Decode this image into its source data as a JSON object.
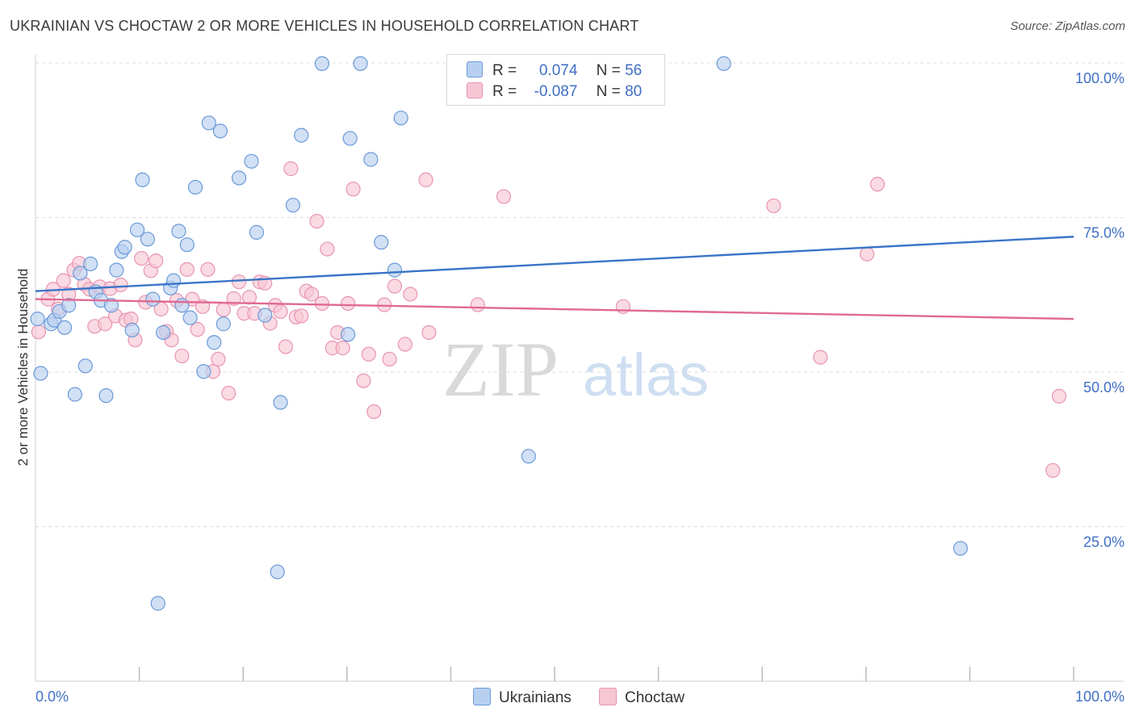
{
  "title": "UKRAINIAN VS CHOCTAW 2 OR MORE VEHICLES IN HOUSEHOLD CORRELATION CHART",
  "source": "Source: ZipAtlas.com",
  "watermark": {
    "zip": "ZIP",
    "atlas": "atlas"
  },
  "colors": {
    "ukrainians_fill": "#b8d0f0",
    "ukrainians_stroke": "#6b9ad8",
    "ukrainians_line": "#3a74c8",
    "choctaw_fill": "#f7c6d4",
    "choctaw_stroke": "#e895b0",
    "choctaw_line": "#e06a92",
    "tick_label": "#3f6fc6",
    "grid": "#dddddd"
  },
  "legend": {
    "rows": [
      {
        "r_label": "R =",
        "r_value": "0.074",
        "n_label": "N =",
        "n_value": "56"
      },
      {
        "r_label": "R =",
        "r_value": "-0.087",
        "n_label": "N =",
        "n_value": "80"
      }
    ]
  },
  "chart_data": {
    "type": "scatter",
    "title": "UKRAINIAN VS CHOCTAW 2 OR MORE VEHICLES IN HOUSEHOLD CORRELATION CHART",
    "xlabel": "",
    "ylabel": "2 or more Vehicles in Household",
    "xlim": [
      0,
      100
    ],
    "ylim": [
      0,
      100
    ],
    "x_tick_labels": [
      "0.0%",
      "100.0%"
    ],
    "y_ticks": [
      25,
      50,
      75,
      100
    ],
    "y_tick_labels": [
      "25.0%",
      "50.0%",
      "75.0%",
      "100.0%"
    ],
    "grid": true,
    "legend_position": "top-center",
    "series": [
      {
        "name": "Ukrainians",
        "r": 0.074,
        "n": 56,
        "trend": {
          "x": [
            0,
            100
          ],
          "y": [
            63.1,
            71.9
          ]
        },
        "points": [
          [
            0.5,
            49.8
          ],
          [
            1.5,
            57.8
          ],
          [
            1.8,
            58.4
          ],
          [
            2.3,
            59.8
          ],
          [
            2.8,
            57.2
          ],
          [
            3.2,
            60.8
          ],
          [
            3.8,
            46.4
          ],
          [
            4.3,
            66.0
          ],
          [
            4.8,
            51.0
          ],
          [
            5.3,
            67.5
          ],
          [
            5.8,
            63.0
          ],
          [
            6.3,
            61.6
          ],
          [
            6.8,
            46.2
          ],
          [
            7.3,
            60.8
          ],
          [
            7.8,
            66.5
          ],
          [
            8.3,
            69.5
          ],
          [
            8.6,
            70.2
          ],
          [
            9.3,
            56.8
          ],
          [
            9.8,
            73.0
          ],
          [
            10.3,
            81.1
          ],
          [
            10.8,
            71.5
          ],
          [
            11.3,
            61.8
          ],
          [
            11.8,
            12.6
          ],
          [
            12.3,
            56.4
          ],
          [
            13.0,
            63.6
          ],
          [
            13.3,
            64.8
          ],
          [
            13.8,
            72.8
          ],
          [
            14.1,
            60.8
          ],
          [
            14.6,
            70.6
          ],
          [
            14.9,
            58.8
          ],
          [
            15.4,
            79.9
          ],
          [
            16.2,
            50.1
          ],
          [
            16.7,
            90.3
          ],
          [
            17.2,
            54.8
          ],
          [
            17.8,
            89.0
          ],
          [
            18.1,
            57.8
          ],
          [
            19.6,
            81.4
          ],
          [
            20.8,
            84.1
          ],
          [
            21.3,
            72.6
          ],
          [
            22.1,
            59.2
          ],
          [
            23.3,
            17.7
          ],
          [
            23.6,
            45.1
          ],
          [
            24.8,
            77.0
          ],
          [
            25.6,
            88.3
          ],
          [
            27.6,
            99.9
          ],
          [
            30.1,
            56.1
          ],
          [
            30.3,
            87.8
          ],
          [
            31.3,
            99.9
          ],
          [
            32.3,
            84.4
          ],
          [
            33.3,
            71.0
          ],
          [
            34.6,
            66.5
          ],
          [
            35.2,
            91.1
          ],
          [
            47.5,
            36.4
          ],
          [
            66.3,
            99.9
          ],
          [
            89.1,
            21.5
          ],
          [
            0.2,
            58.6
          ]
        ]
      },
      {
        "name": "Choctaw",
        "r": -0.087,
        "n": 80,
        "trend": {
          "x": [
            0,
            100
          ],
          "y": [
            61.8,
            58.6
          ]
        },
        "points": [
          [
            0.3,
            56.5
          ],
          [
            1.2,
            61.8
          ],
          [
            1.7,
            63.4
          ],
          [
            2.2,
            60.2
          ],
          [
            2.7,
            64.8
          ],
          [
            3.2,
            62.6
          ],
          [
            3.7,
            66.5
          ],
          [
            4.2,
            67.6
          ],
          [
            4.7,
            64.2
          ],
          [
            5.2,
            63.4
          ],
          [
            5.7,
            57.4
          ],
          [
            6.2,
            63.8
          ],
          [
            6.7,
            57.8
          ],
          [
            7.2,
            63.5
          ],
          [
            7.7,
            59.1
          ],
          [
            8.2,
            64.1
          ],
          [
            8.7,
            58.4
          ],
          [
            9.2,
            58.6
          ],
          [
            9.6,
            55.2
          ],
          [
            10.2,
            68.4
          ],
          [
            10.6,
            61.3
          ],
          [
            11.1,
            66.4
          ],
          [
            11.6,
            68.0
          ],
          [
            12.1,
            60.2
          ],
          [
            12.6,
            56.6
          ],
          [
            13.1,
            55.2
          ],
          [
            13.6,
            61.6
          ],
          [
            14.1,
            52.6
          ],
          [
            14.6,
            66.6
          ],
          [
            15.1,
            61.8
          ],
          [
            15.6,
            56.9
          ],
          [
            16.1,
            60.6
          ],
          [
            16.6,
            66.6
          ],
          [
            17.1,
            50.1
          ],
          [
            17.6,
            52.1
          ],
          [
            18.1,
            60.1
          ],
          [
            18.6,
            46.6
          ],
          [
            19.1,
            61.9
          ],
          [
            19.6,
            64.6
          ],
          [
            20.1,
            59.5
          ],
          [
            20.6,
            62.1
          ],
          [
            21.1,
            59.5
          ],
          [
            21.6,
            64.6
          ],
          [
            22.1,
            64.4
          ],
          [
            22.6,
            57.9
          ],
          [
            23.1,
            60.8
          ],
          [
            23.6,
            59.8
          ],
          [
            24.1,
            54.1
          ],
          [
            24.6,
            82.9
          ],
          [
            25.1,
            58.9
          ],
          [
            25.6,
            59.1
          ],
          [
            26.1,
            63.1
          ],
          [
            26.6,
            62.6
          ],
          [
            27.1,
            74.4
          ],
          [
            27.6,
            61.1
          ],
          [
            28.1,
            69.9
          ],
          [
            28.6,
            53.9
          ],
          [
            29.1,
            56.4
          ],
          [
            29.6,
            53.9
          ],
          [
            30.1,
            61.1
          ],
          [
            30.6,
            79.6
          ],
          [
            31.6,
            48.6
          ],
          [
            32.1,
            52.9
          ],
          [
            32.6,
            43.6
          ],
          [
            33.6,
            60.9
          ],
          [
            34.1,
            52.1
          ],
          [
            34.6,
            63.9
          ],
          [
            35.6,
            54.5
          ],
          [
            36.1,
            62.6
          ],
          [
            37.6,
            81.1
          ],
          [
            37.9,
            56.4
          ],
          [
            42.6,
            60.9
          ],
          [
            45.1,
            78.4
          ],
          [
            56.6,
            60.6
          ],
          [
            71.1,
            76.9
          ],
          [
            75.6,
            52.4
          ],
          [
            80.1,
            69.1
          ],
          [
            81.1,
            80.4
          ],
          [
            98.0,
            34.1
          ],
          [
            98.6,
            46.1
          ]
        ]
      }
    ]
  }
}
